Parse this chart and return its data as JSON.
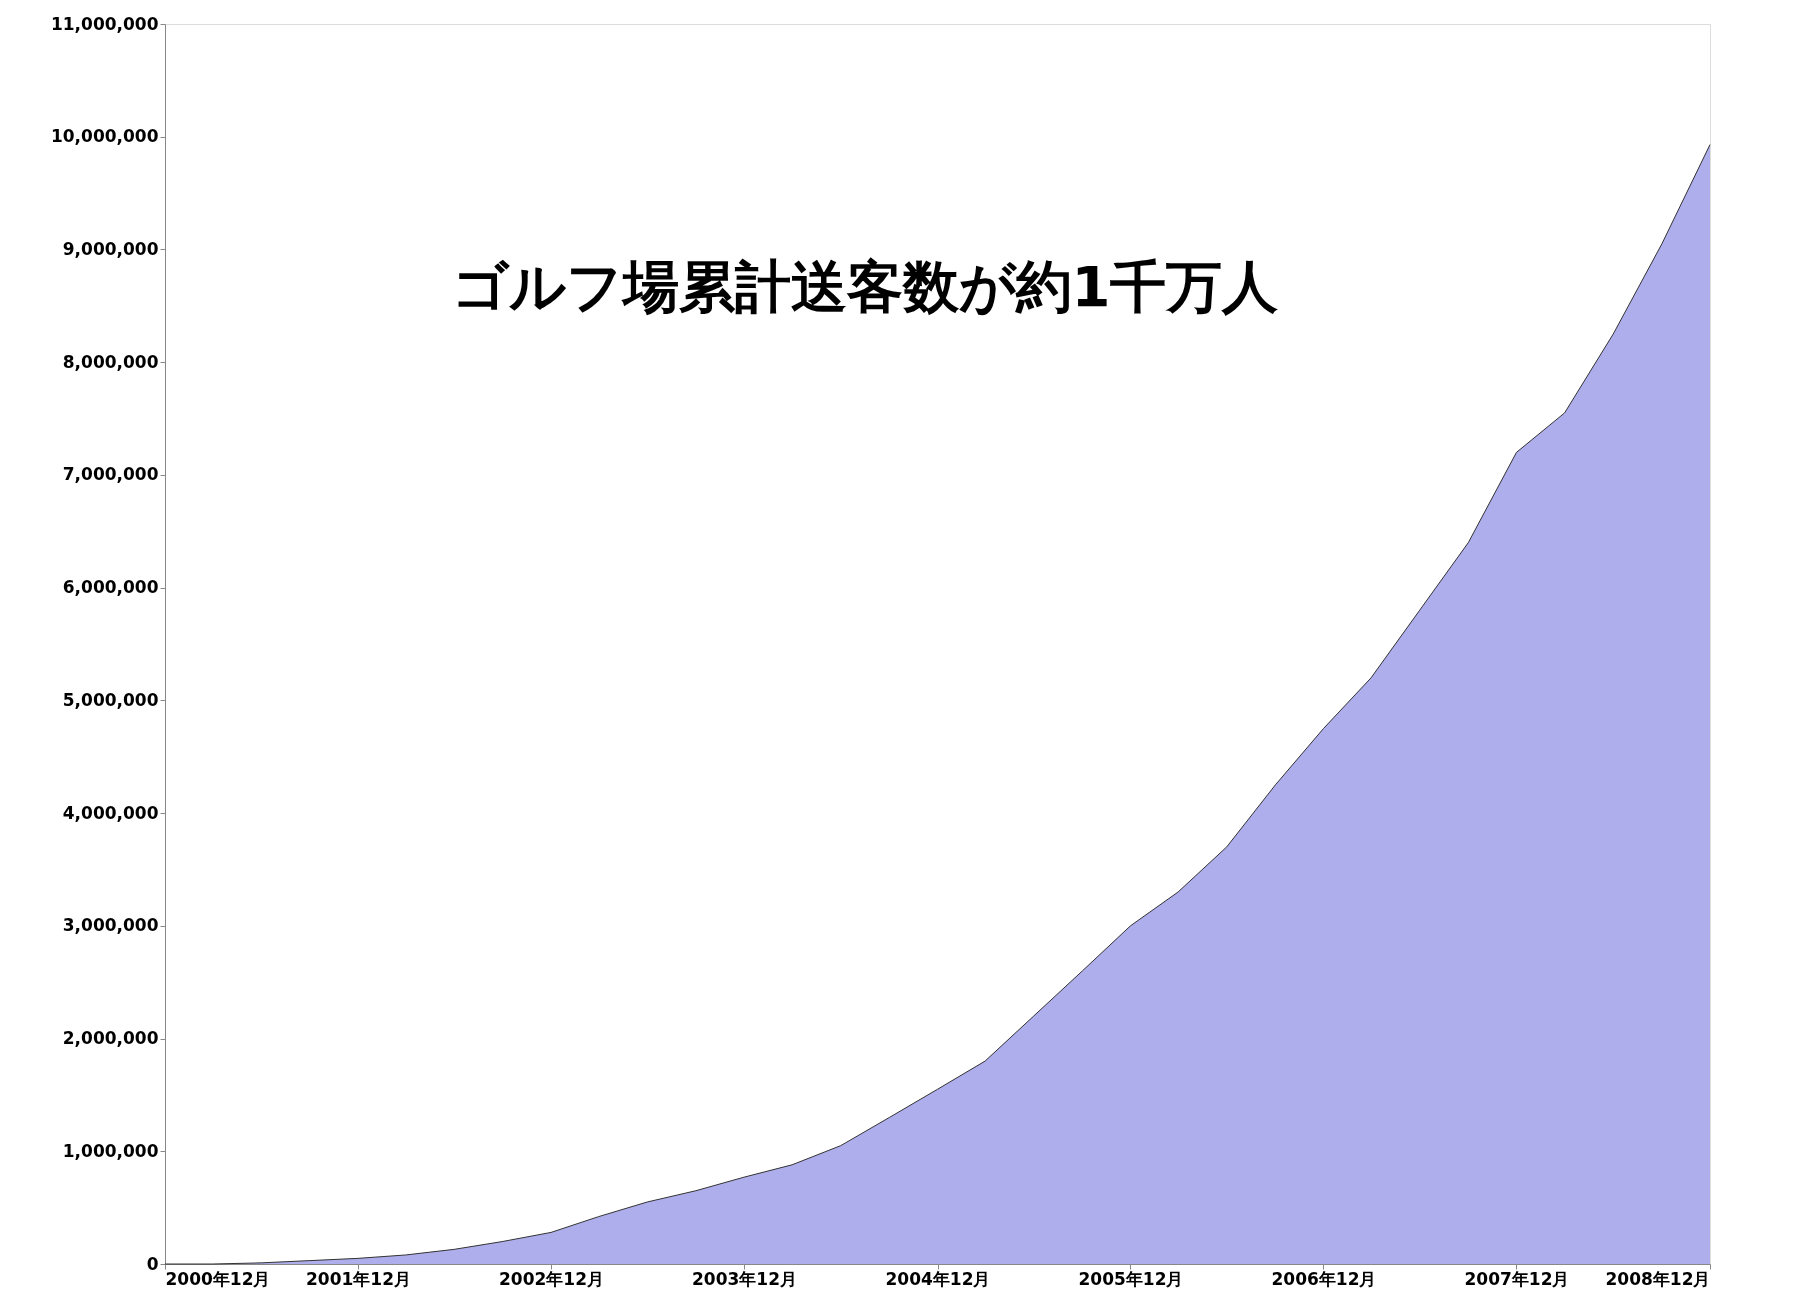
{
  "chart_data": {
    "type": "area",
    "title": "ゴルフ場累計送客数が約1千万人",
    "x": [
      "2000-12",
      "2001-03",
      "2001-06",
      "2001-09",
      "2001-12",
      "2002-03",
      "2002-06",
      "2002-09",
      "2002-12",
      "2003-03",
      "2003-06",
      "2003-09",
      "2003-12",
      "2004-03",
      "2004-06",
      "2004-09",
      "2004-12",
      "2005-03",
      "2005-06",
      "2005-09",
      "2005-12",
      "2006-03",
      "2006-06",
      "2006-09",
      "2006-12",
      "2007-03",
      "2007-06",
      "2007-09",
      "2007-12",
      "2008-03",
      "2008-06",
      "2008-09",
      "2008-12"
    ],
    "series": [
      {
        "color": "#8c8ce6",
        "values": [
          0,
          0,
          10000,
          30000,
          50000,
          80000,
          130000,
          200000,
          280000,
          420000,
          550000,
          650000,
          770000,
          880000,
          1050000,
          1300000,
          1550000,
          1800000,
          2200000,
          2600000,
          3000000,
          3300000,
          3700000,
          4250000,
          4750000,
          5200000,
          5800000,
          6400000,
          7200000,
          7550000,
          8250000,
          9050000,
          9930000
        ]
      }
    ],
    "xlim": [
      "2000-12",
      "2008-12"
    ],
    "xticks": [
      {
        "value": "2000-12",
        "label": "2000年12月"
      },
      {
        "value": "2001-12",
        "label": "2001年12月"
      },
      {
        "value": "2002-12",
        "label": "2002年12月"
      },
      {
        "value": "2003-12",
        "label": "2003年12月"
      },
      {
        "value": "2004-12",
        "label": "2004年12月"
      },
      {
        "value": "2005-12",
        "label": "2005年12月"
      },
      {
        "value": "2006-12",
        "label": "2006年12月"
      },
      {
        "value": "2007-12",
        "label": "2007年12月"
      },
      {
        "value": "2008-12",
        "label": "2008年12月"
      }
    ],
    "ylim": [
      0,
      11000000
    ],
    "yticks": [
      0,
      {
        "value": 1000000,
        "label": "1,000,000"
      },
      {
        "value": 2000000,
        "label": "2,000,000"
      },
      {
        "value": 3000000,
        "label": "3,000,000"
      },
      {
        "value": 4000000,
        "label": "4,000,000"
      },
      {
        "value": 5000000,
        "label": "5,000,000"
      },
      {
        "value": 6000000,
        "label": "6,000,000"
      },
      {
        "value": 7000000,
        "label": "7,000,000"
      },
      {
        "value": 8000000,
        "label": "8,000,000"
      },
      {
        "value": 9000000,
        "label": "9,000,000"
      },
      {
        "value": 10000000,
        "label": "10,000,000"
      },
      {
        "value": 11000000,
        "label": "11,000,000"
      }
    ],
    "grid": false
  }
}
